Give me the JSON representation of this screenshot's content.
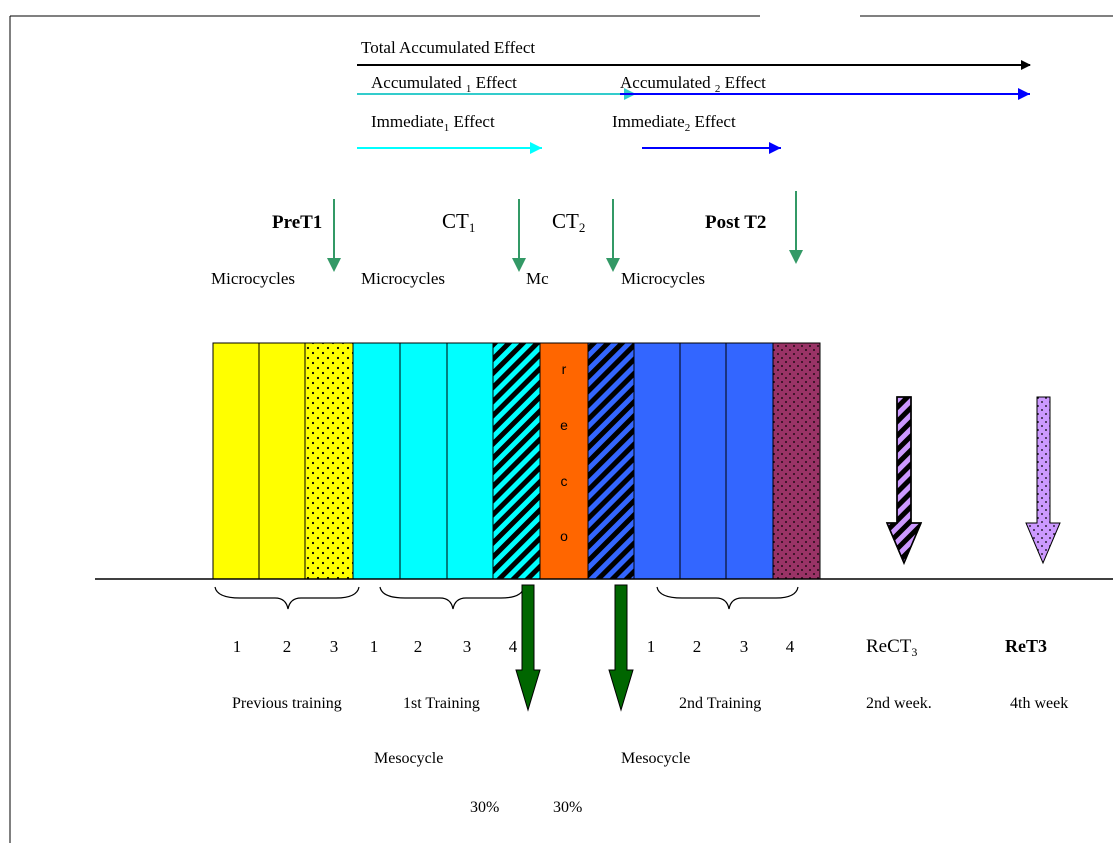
{
  "effects": {
    "total": "Total  Accumulated Effect",
    "acc1_pre": "Accumulated ",
    "acc1_sub": "1",
    "acc1_post": " Effect",
    "acc2_pre": "Accumulated ",
    "acc2_sub": "2",
    "acc2_post": " Effect",
    "imm1_pre": "Immediate",
    "imm1_sub": "1",
    "imm1_post": " Effect",
    "imm2_pre": "Immediate",
    "imm2_sub": "2",
    "imm2_post": " Effect"
  },
  "tests": {
    "pret1": "PreT1",
    "ct1_main": "CT",
    "ct1_sub": "1",
    "ct2_main": "CT",
    "ct2_sub": "2",
    "postt2": "Post T2",
    "rect3_main": "ReCT",
    "rect3_sub": "3",
    "ret3": "ReT3"
  },
  "top_labels": {
    "micro_a": "Microcycles",
    "micro_b": "Microcycles",
    "mc": "Mc",
    "micro_c": "Microcycles"
  },
  "reco_letters": [
    "r",
    "e",
    "c",
    "o"
  ],
  "numbers": {
    "n1": "1",
    "n2": "2",
    "n3": "3",
    "n4": "1",
    "n5": "2",
    "n6": "3",
    "n7": "4",
    "n8": "1",
    "n9": "2",
    "n10": "3",
    "n11": "4"
  },
  "bottom_labels": {
    "previous": "Previous training",
    "first": "1st Training",
    "second": "2nd Training",
    "week2": "2nd week.",
    "week4": "4th week",
    "meso1": "Mesocycle",
    "meso2": "Mesocycle",
    "pct1": "30%",
    "pct2": "30%"
  },
  "colors": {
    "yellow": "#ffff00",
    "cyan": "#00ffff",
    "orange": "#ff6600",
    "blue": "#3366ff",
    "maroon": "#993366",
    "arrow_green": "#339966",
    "big_arrow_green": "#006600",
    "effect_cyan": "#33cccc",
    "effect_blue": "#0000ff",
    "lilac": "#cc99ff"
  }
}
